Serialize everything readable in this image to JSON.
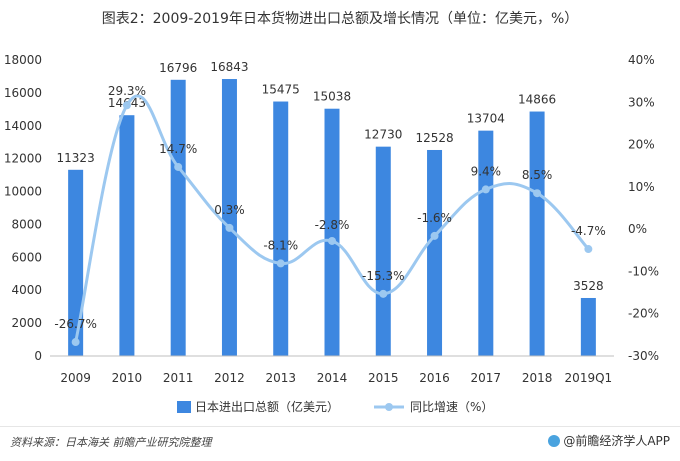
{
  "title": "图表2：2009-2019年日本货物进出口总额及增长情况（单位：亿美元，%）",
  "source": "资料来源：日本海关  前瞻产业研究院整理",
  "brand": "@前瞻经济学人APP",
  "colors": {
    "bar": "#3d87e0",
    "line": "#9cc8f0",
    "text": "#333333"
  },
  "chart_data": {
    "type": "bar",
    "categories": [
      "2009",
      "2010",
      "2011",
      "2012",
      "2013",
      "2014",
      "2015",
      "2016",
      "2017",
      "2018",
      "2019Q1"
    ],
    "series": [
      {
        "name": "日本进出口总额（亿美元）",
        "type": "bar",
        "axis": "left",
        "values": [
          11323,
          14643,
          16796,
          16843,
          15475,
          15038,
          12730,
          12528,
          13704,
          14866,
          3528
        ],
        "labels": [
          "11323",
          "14643",
          "16796",
          "16843",
          "15475",
          "15038",
          "12730",
          "12528",
          "13704",
          "14866",
          "3528"
        ]
      },
      {
        "name": "同比增速（%）",
        "type": "line",
        "axis": "right",
        "values": [
          -26.7,
          29.3,
          14.7,
          0.3,
          -8.1,
          -2.8,
          -15.3,
          -1.6,
          9.4,
          8.5,
          -4.7
        ],
        "labels": [
          "-26.7%",
          "29.3%",
          "14.7%",
          "0.3%",
          "-8.1%",
          "-2.8%",
          "-15.3%",
          "-1.6%",
          "9.4%",
          "8.5%",
          "-4.7%"
        ]
      }
    ],
    "y_left": {
      "range": [
        0,
        18000
      ],
      "ticks": [
        "0",
        "2000",
        "4000",
        "6000",
        "8000",
        "10000",
        "12000",
        "14000",
        "16000",
        "18000"
      ]
    },
    "y_right": {
      "range": [
        -30,
        40
      ],
      "ticks": [
        "-30%",
        "-20%",
        "-10%",
        "0%",
        "10%",
        "20%",
        "30%",
        "40%"
      ]
    },
    "legend": "bottom",
    "grid": false
  }
}
